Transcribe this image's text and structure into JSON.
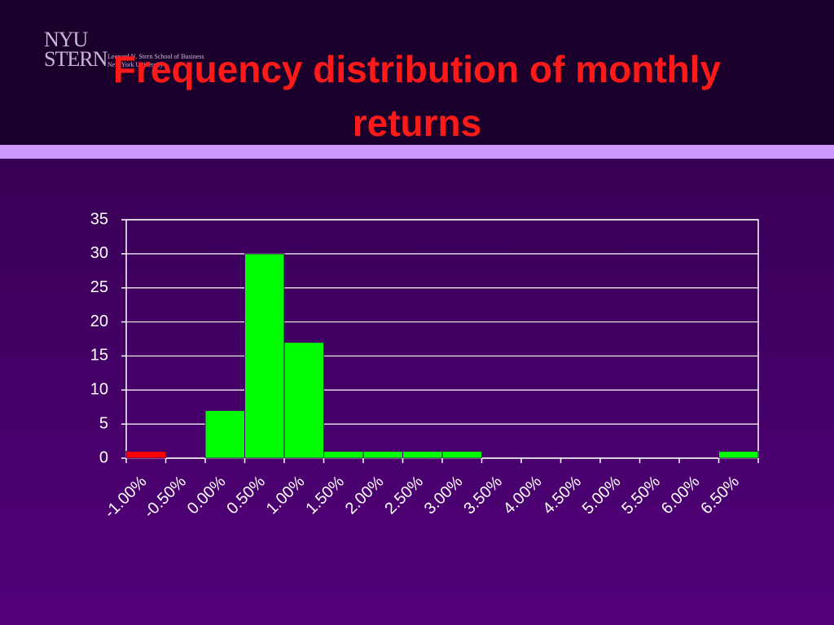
{
  "logo": {
    "name": "NYU",
    "school": "STERN",
    "line1": "Leonard N. Stern School of Business",
    "line2": "New York University"
  },
  "chart_data": {
    "type": "bar",
    "title": "Frequency distribution of monthly returns",
    "categories": [
      "-1.00%",
      "-0.50%",
      "0.00%",
      "0.50%",
      "1.00%",
      "1.50%",
      "2.00%",
      "2.50%",
      "3.00%",
      "3.50%",
      "4.00%",
      "4.50%",
      "5.00%",
      "5.50%",
      "6.00%",
      "6.50%"
    ],
    "values": [
      1,
      0,
      7,
      30,
      17,
      1,
      1,
      1,
      1,
      0,
      0,
      0,
      0,
      0,
      0,
      1
    ],
    "colors": [
      "#ff0000",
      "#00ff00",
      "#00ff00",
      "#00ff00",
      "#00ff00",
      "#00ff00",
      "#00ff00",
      "#00ff00",
      "#00ff00",
      "#00ff00",
      "#00ff00",
      "#00ff00",
      "#00ff00",
      "#00ff00",
      "#00ff00",
      "#00ff00"
    ],
    "ylim": [
      0,
      35
    ],
    "yticks": [
      0,
      5,
      10,
      15,
      20,
      25,
      30,
      35
    ],
    "grid": true
  }
}
